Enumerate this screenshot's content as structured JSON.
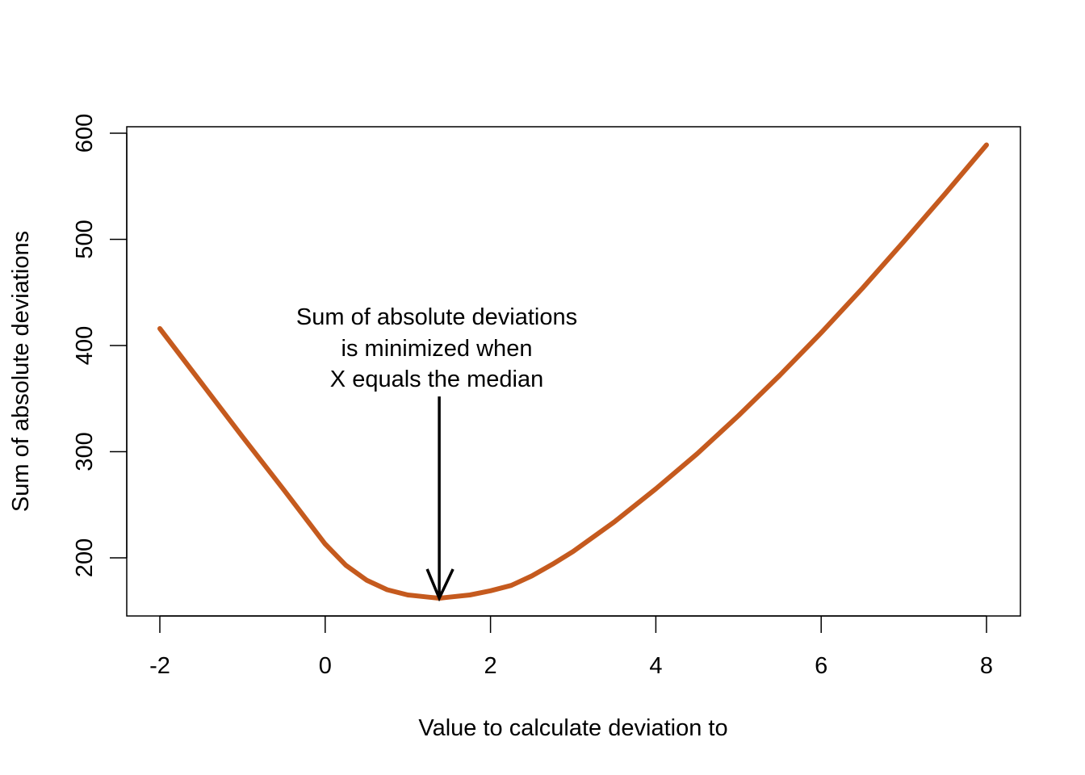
{
  "chart_data": {
    "type": "line",
    "title": "",
    "xlabel": "Value to calculate deviation to",
    "ylabel": "Sum of absolute deviations",
    "xlim": [
      -2,
      8
    ],
    "ylim": [
      145,
      600
    ],
    "x_ticks": [
      -2,
      0,
      2,
      4,
      6,
      8
    ],
    "y_ticks": [
      200,
      300,
      400,
      500,
      600
    ],
    "x_tick_labels": [
      "-2",
      "0",
      "2",
      "4",
      "6",
      "8"
    ],
    "y_tick_labels": [
      "200",
      "300",
      "400",
      "500",
      "600"
    ],
    "grid": false,
    "legend": "none",
    "series": [
      {
        "color": "#c55a1e",
        "x": [
          -2,
          -1.5,
          -1,
          -0.5,
          0,
          0.25,
          0.5,
          0.75,
          1,
          1.25,
          1.38,
          1.5,
          1.75,
          2,
          2.25,
          2.5,
          2.75,
          3,
          3.5,
          4,
          4.5,
          5,
          5.5,
          6,
          6.5,
          7,
          7.5,
          8
        ],
        "y": [
          416,
          365,
          314,
          264,
          213,
          193,
          179,
          170,
          165,
          163,
          162,
          163,
          165,
          169,
          174,
          183,
          194,
          206,
          234,
          265,
          298,
          334,
          372,
          412,
          454,
          498,
          543,
          589
        ]
      }
    ],
    "annotation": {
      "lines": [
        "Sum of absolute deviations",
        "is minimized when",
        "X equals the median"
      ],
      "arrow_from": [
        1.38,
        352
      ],
      "arrow_to": [
        1.38,
        162
      ]
    }
  }
}
